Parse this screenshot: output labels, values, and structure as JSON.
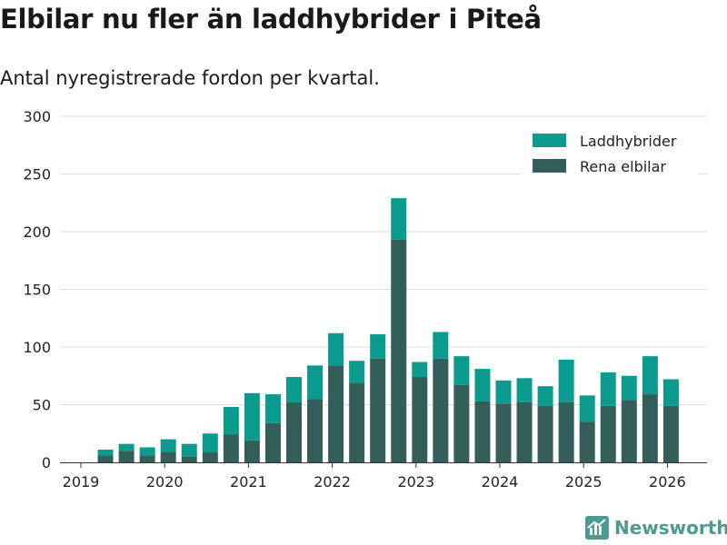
{
  "title": "Elbilar nu fler än laddhybrider i Piteå",
  "subtitle": "Antal nyregistrerade fordon per kvartal.",
  "brand": "Newsworthy",
  "colors": {
    "ev": "#345e5a",
    "phev": "#0a9a8e",
    "grid": "#dddddd",
    "axis": "#333333",
    "brand": "#4c9a92"
  },
  "chart_data": {
    "type": "bar",
    "stacked": true,
    "title": "Elbilar nu fler än laddhybrider i Piteå",
    "subtitle": "Antal nyregistrerade fordon per kvartal.",
    "xlabel": "",
    "ylabel": "",
    "ylim": [
      0,
      300
    ],
    "yticks": [
      0,
      50,
      100,
      150,
      200,
      250,
      300
    ],
    "xticks": [
      "2019",
      "2020",
      "2021",
      "2022",
      "2023",
      "2024",
      "2025",
      "2026"
    ],
    "categories": [
      "2019 Q2",
      "2019 Q3",
      "2019 Q4",
      "2020 Q1",
      "2020 Q2",
      "2020 Q3",
      "2020 Q4",
      "2021 Q1",
      "2021 Q2",
      "2021 Q3",
      "2021 Q4",
      "2022 Q1",
      "2022 Q2",
      "2022 Q3",
      "2022 Q4",
      "2023 Q1",
      "2023 Q2",
      "2023 Q3",
      "2023 Q4",
      "2024 Q1",
      "2024 Q2",
      "2024 Q3",
      "2024 Q4",
      "2025 Q1",
      "2025 Q2",
      "2025 Q3",
      "2025 Q4",
      "2026 Q1"
    ],
    "series": [
      {
        "name": "Rena elbilar",
        "values": [
          6,
          10,
          6,
          9,
          5,
          9,
          24,
          19,
          34,
          52,
          55,
          84,
          69,
          90,
          193,
          74,
          90,
          67,
          53,
          51,
          52,
          49,
          52,
          35,
          49,
          54,
          59,
          49
        ]
      },
      {
        "name": "Laddhybrider",
        "values": [
          5,
          6,
          7,
          11,
          11,
          16,
          24,
          41,
          25,
          22,
          29,
          28,
          19,
          21,
          36,
          13,
          23,
          25,
          28,
          20,
          21,
          17,
          37,
          23,
          29,
          21,
          33,
          23
        ]
      }
    ],
    "legend": [
      "Laddhybrider",
      "Rena elbilar"
    ],
    "legend_position": "top-right",
    "grid": true
  }
}
